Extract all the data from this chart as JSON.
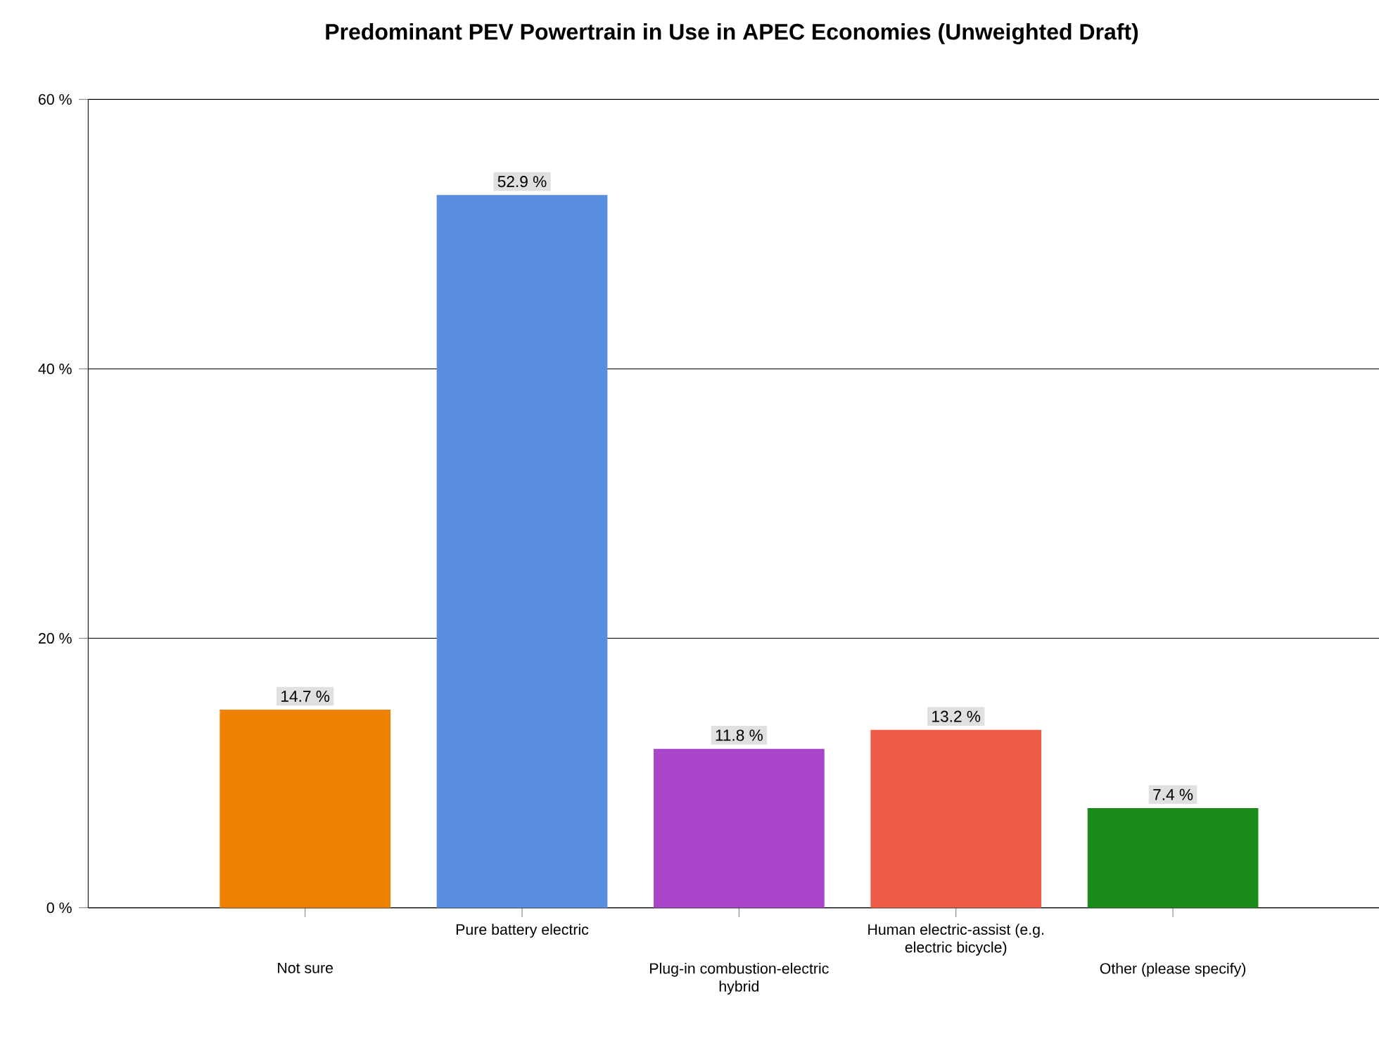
{
  "chart_data": {
    "type": "bar",
    "title": "Predominant PEV Powertrain in Use in APEC Economies (Unweighted Draft)",
    "categories": [
      "Not sure",
      "Pure battery electric",
      "Plug-in combustion-electric hybrid",
      "Human electric-assist (e.g. electric bicycle)",
      "Other (please specify)"
    ],
    "values": [
      14.7,
      52.9,
      11.8,
      13.2,
      7.4
    ],
    "colors": [
      "#f08000",
      "#5a8ee0",
      "#a845c8",
      "#ee5a45",
      "#1a8a1a"
    ],
    "value_labels": [
      "14.7 %",
      "52.9 %",
      "11.8 %",
      "13.2 %",
      "7.4 %"
    ],
    "ylim": [
      0,
      60
    ],
    "yticks": [
      {
        "value": 0,
        "label": "0 %"
      },
      {
        "value": 20,
        "label": "20 %"
      },
      {
        "value": 40,
        "label": "40 %"
      },
      {
        "value": 60,
        "label": "60 %"
      }
    ],
    "grid": "y"
  }
}
